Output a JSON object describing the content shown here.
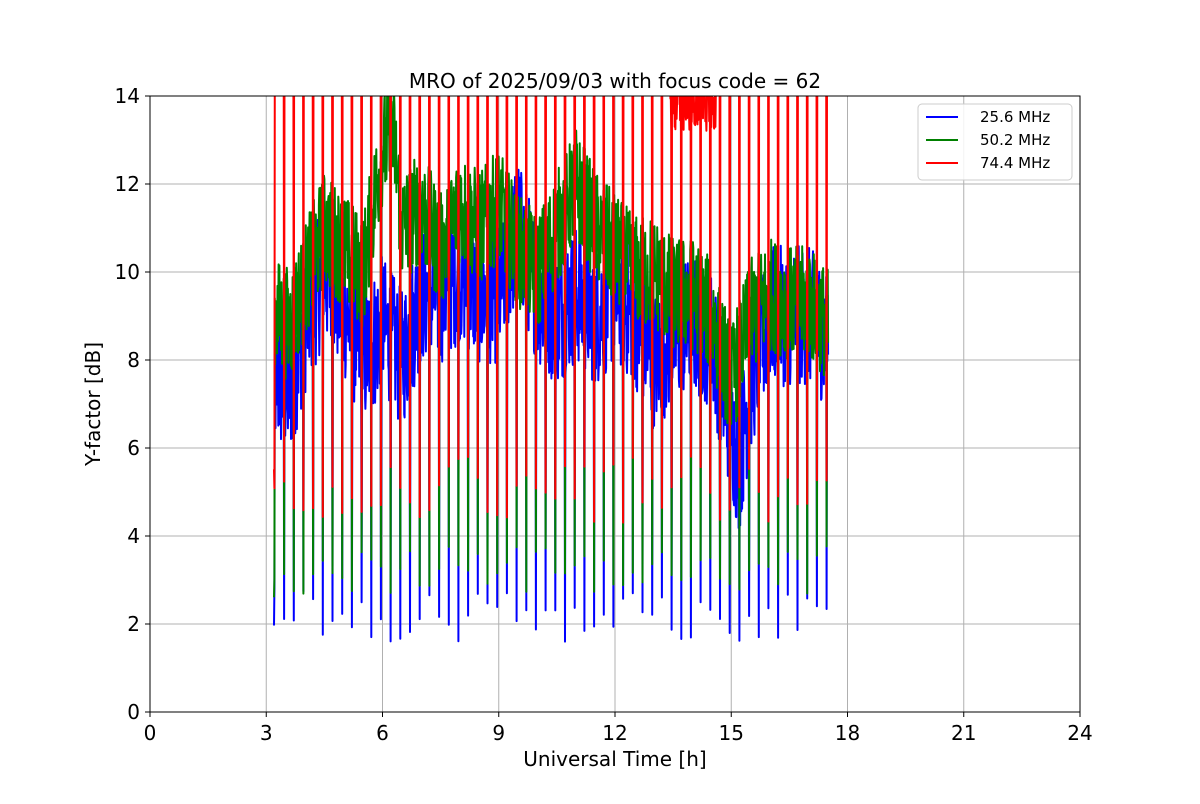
{
  "chart_data": {
    "type": "line",
    "title": "MRO of 2025/09/03 with focus code = 62",
    "xlabel": "Universal Time [h]",
    "ylabel": "Y-factor [dB]",
    "xlim": [
      0,
      24
    ],
    "ylim": [
      0,
      14
    ],
    "x_ticks": [
      "0",
      "3",
      "6",
      "9",
      "12",
      "15",
      "18",
      "21",
      "24"
    ],
    "y_ticks": [
      "0",
      "2",
      "4",
      "6",
      "8",
      "10",
      "12",
      "14"
    ],
    "grid": true,
    "legend_position": "top-right",
    "x_range_of_data": [
      3.2,
      17.5
    ],
    "series": [
      {
        "name": "25.6 MHz",
        "color": "#0000ff",
        "baseline_points": [
          [
            3.3,
            7.5
          ],
          [
            3.6,
            7.3
          ],
          [
            4.0,
            8.8
          ],
          [
            4.5,
            10.0
          ],
          [
            5.0,
            9.2
          ],
          [
            5.5,
            8.0
          ],
          [
            6.0,
            8.8
          ],
          [
            6.5,
            8.0
          ],
          [
            7.0,
            9.5
          ],
          [
            7.5,
            9.5
          ],
          [
            8.0,
            10.0
          ],
          [
            8.5,
            9.5
          ],
          [
            9.0,
            9.5
          ],
          [
            9.5,
            11.0
          ],
          [
            10.0,
            9.5
          ],
          [
            10.5,
            9.0
          ],
          [
            11.0,
            9.5
          ],
          [
            11.5,
            9.0
          ],
          [
            12.0,
            9.5
          ],
          [
            12.5,
            9.0
          ],
          [
            13.0,
            8.0
          ],
          [
            13.5,
            8.5
          ],
          [
            14.0,
            8.8
          ],
          [
            14.5,
            8.5
          ],
          [
            15.0,
            6.5
          ],
          [
            15.2,
            5.6
          ],
          [
            15.5,
            7.5
          ],
          [
            16.0,
            9.0
          ],
          [
            16.5,
            9.0
          ],
          [
            17.0,
            9.0
          ],
          [
            17.5,
            8.5
          ]
        ],
        "minima_y": 1.6
      },
      {
        "name": "50.2 MHz",
        "color": "#008000",
        "baseline_points": [
          [
            3.3,
            9.0
          ],
          [
            3.6,
            8.8
          ],
          [
            4.0,
            9.8
          ],
          [
            4.5,
            11.0
          ],
          [
            5.0,
            10.5
          ],
          [
            5.5,
            10.0
          ],
          [
            6.0,
            12.8
          ],
          [
            6.3,
            13.0
          ],
          [
            6.5,
            11.0
          ],
          [
            7.0,
            11.5
          ],
          [
            7.5,
            10.5
          ],
          [
            8.0,
            11.5
          ],
          [
            8.5,
            11.0
          ],
          [
            9.0,
            11.5
          ],
          [
            9.5,
            10.5
          ],
          [
            10.0,
            10.0
          ],
          [
            10.5,
            11.0
          ],
          [
            11.0,
            12.0
          ],
          [
            11.5,
            11.0
          ],
          [
            12.0,
            10.5
          ],
          [
            12.5,
            10.0
          ],
          [
            13.0,
            10.0
          ],
          [
            13.5,
            9.5
          ],
          [
            14.0,
            9.5
          ],
          [
            14.5,
            9.0
          ],
          [
            15.0,
            7.5
          ],
          [
            15.5,
            9.0
          ],
          [
            16.0,
            9.5
          ],
          [
            16.5,
            9.3
          ],
          [
            17.0,
            9.3
          ],
          [
            17.5,
            8.8
          ]
        ],
        "minima_y": 2.6
      },
      {
        "name": "74.4 MHz",
        "color": "#ff0000",
        "baseline_points": [
          [
            3.2,
            14.0
          ],
          [
            17.5,
            14.0
          ]
        ],
        "minima_y": 4.3
      }
    ],
    "dip_spacing_h": 0.25
  }
}
